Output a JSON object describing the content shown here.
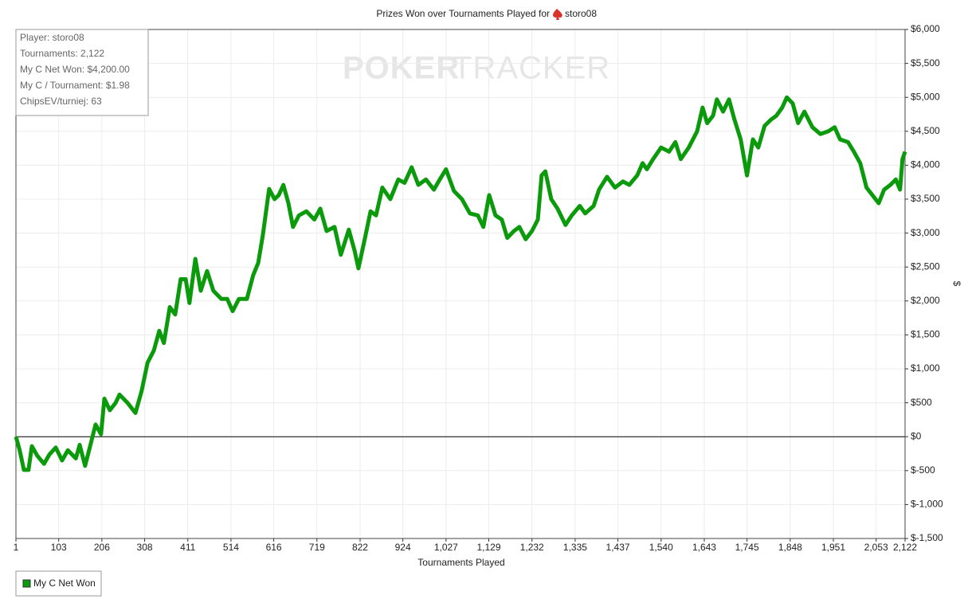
{
  "chart_data": {
    "type": "line",
    "title": "Prizes Won over Tournaments Played for",
    "player": "storo08",
    "x_label": "Tournaments Played",
    "y_label": "$",
    "watermark": [
      "POKER",
      "TRACKER"
    ],
    "info": [
      "Player: storo08",
      "Tournaments: 2,122",
      "My C Net Won: $4,200.00",
      "My C / Tournament: $1.98",
      "ChipsEV/turniej: 63"
    ],
    "legend": "bottom-left",
    "grid": true,
    "xlim": [
      1,
      2122
    ],
    "ylim": [
      -1500,
      6000
    ],
    "xticks": [
      1,
      103,
      206,
      308,
      411,
      514,
      616,
      719,
      822,
      924,
      {
        "value": 1027,
        "label": "1,027"
      },
      {
        "value": 1129,
        "label": "1,129"
      },
      {
        "value": 1232,
        "label": "1,232"
      },
      {
        "value": 1335,
        "label": "1,335"
      },
      {
        "value": 1437,
        "label": "1,437"
      },
      {
        "value": 1540,
        "label": "1,540"
      },
      {
        "value": 1643,
        "label": "1,643"
      },
      {
        "value": 1745,
        "label": "1,745"
      },
      {
        "value": 1848,
        "label": "1,848"
      },
      {
        "value": 1951,
        "label": "1,951"
      },
      {
        "value": 2053,
        "label": "2,053"
      },
      {
        "value": 2122,
        "label": "2,122"
      }
    ],
    "yticks": [
      {
        "value": -1500,
        "label": "$-1,500"
      },
      {
        "value": -1000,
        "label": "$-1,000"
      },
      {
        "value": -500,
        "label": "$-500"
      },
      {
        "value": 0,
        "label": "$0"
      },
      {
        "value": 500,
        "label": "$500"
      },
      {
        "value": 1000,
        "label": "$1,000"
      },
      {
        "value": 1500,
        "label": "$1,500"
      },
      {
        "value": 2000,
        "label": "$2,000"
      },
      {
        "value": 2500,
        "label": "$2,500"
      },
      {
        "value": 3000,
        "label": "$3,000"
      },
      {
        "value": 3500,
        "label": "$3,500"
      },
      {
        "value": 4000,
        "label": "$4,000"
      },
      {
        "value": 4500,
        "label": "$4,500"
      },
      {
        "value": 5000,
        "label": "$5,000"
      },
      {
        "value": 5500,
        "label": "$5,500"
      },
      {
        "value": 6000,
        "label": "$6,000"
      }
    ],
    "x": [
      1,
      10,
      20,
      31,
      39,
      52,
      68,
      81,
      96,
      111,
      125,
      144,
      153,
      166,
      178,
      191,
      204,
      212,
      225,
      239,
      248,
      267,
      286,
      301,
      315,
      330,
      343,
      354,
      368,
      381,
      394,
      406,
      415,
      429,
      442,
      457,
      472,
      491,
      505,
      518,
      533,
      552,
      567,
      579,
      590,
      605,
      618,
      628,
      639,
      651,
      662,
      676,
      694,
      713,
      727,
      742,
      761,
      776,
      795,
      809,
      818,
      833,
      847,
      860,
      875,
      894,
      913,
      928,
      945,
      961,
      979,
      998,
      1012,
      1027,
      1046,
      1065,
      1084,
      1103,
      1116,
      1130,
      1145,
      1160,
      1173,
      1189,
      1202,
      1217,
      1232,
      1246,
      1255,
      1264,
      1278,
      1293,
      1312,
      1327,
      1346,
      1359,
      1379,
      1392,
      1411,
      1430,
      1449,
      1464,
      1483,
      1496,
      1506,
      1521,
      1540,
      1559,
      1574,
      1587,
      1606,
      1626,
      1639,
      1650,
      1664,
      1673,
      1688,
      1702,
      1715,
      1730,
      1745,
      1759,
      1772,
      1787,
      1802,
      1815,
      1829,
      1840,
      1854,
      1867,
      1882,
      1901,
      1920,
      1939,
      1954,
      1967,
      1986,
      2000,
      2015,
      2030,
      2044,
      2059,
      2072,
      2087,
      2100,
      2110,
      2116,
      2122
    ],
    "series": [
      {
        "name": "My C Net Won",
        "color": "#0b9a0b",
        "values": [
          0,
          -200,
          -490,
          -490,
          -140,
          -280,
          -400,
          -260,
          -160,
          -350,
          -200,
          -320,
          -120,
          -430,
          -140,
          180,
          35,
          560,
          390,
          500,
          620,
          500,
          350,
          680,
          1090,
          1270,
          1560,
          1380,
          1910,
          1800,
          2320,
          2320,
          1970,
          2620,
          2150,
          2440,
          2150,
          2030,
          2030,
          1850,
          2030,
          2030,
          2380,
          2560,
          2970,
          3650,
          3500,
          3560,
          3710,
          3440,
          3090,
          3260,
          3320,
          3200,
          3360,
          3030,
          3090,
          2680,
          3050,
          2740,
          2480,
          2910,
          3320,
          3260,
          3670,
          3500,
          3790,
          3740,
          3970,
          3710,
          3790,
          3640,
          3790,
          3940,
          3620,
          3500,
          3290,
          3260,
          3090,
          3560,
          3260,
          3200,
          2930,
          3030,
          3090,
          2910,
          3030,
          3200,
          3850,
          3910,
          3500,
          3360,
          3120,
          3260,
          3400,
          3290,
          3400,
          3640,
          3830,
          3670,
          3760,
          3710,
          3850,
          4030,
          3940,
          4090,
          4260,
          4200,
          4340,
          4090,
          4260,
          4500,
          4850,
          4620,
          4730,
          4970,
          4790,
          4970,
          4670,
          4380,
          3850,
          4380,
          4260,
          4580,
          4670,
          4730,
          4850,
          5000,
          4910,
          4620,
          4790,
          4560,
          4460,
          4500,
          4560,
          4380,
          4340,
          4200,
          4030,
          3670,
          3560,
          3440,
          3640,
          3710,
          3790,
          3640,
          4090,
          4200
        ]
      }
    ]
  }
}
